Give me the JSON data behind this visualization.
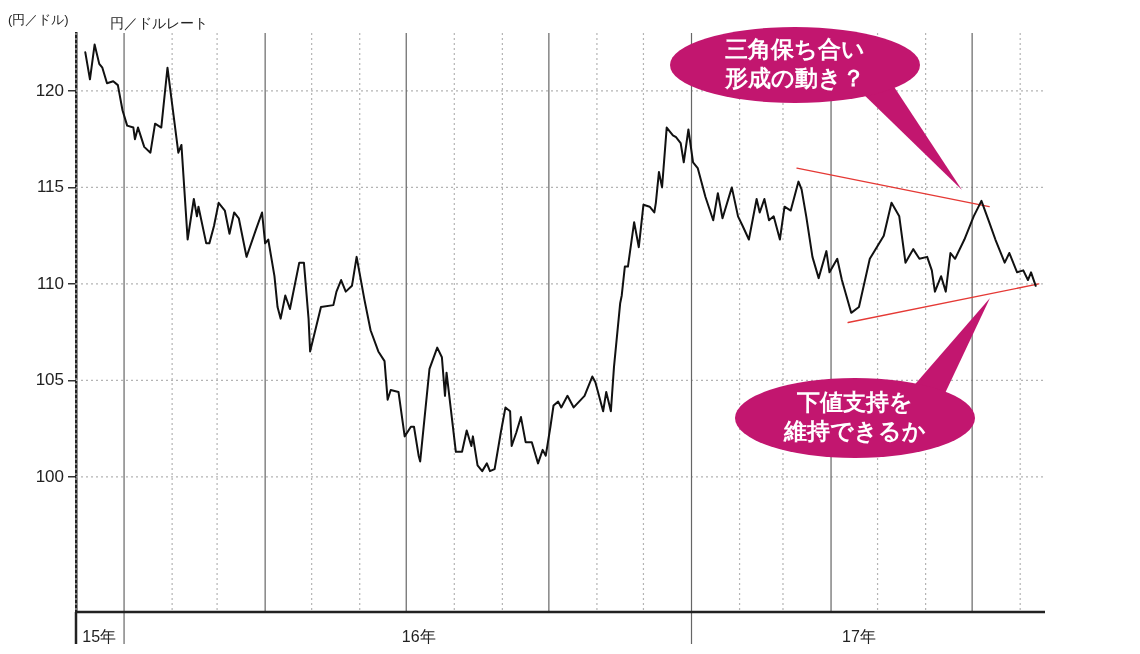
{
  "chart_data": {
    "type": "line",
    "title": "円／ドルレート",
    "ylabel": "(円／ドル)",
    "xlim": [
      "2015-12-01",
      "2017-08-17"
    ],
    "ylim": [
      93,
      123
    ],
    "yticks": [
      100,
      105,
      110,
      115,
      120
    ],
    "xticks": [
      {
        "value": "2015-12-01",
        "label": null
      },
      {
        "value": "2016-01-01",
        "label": null
      },
      {
        "value": "2016-02-01",
        "label": null
      },
      {
        "value": "2016-03-01",
        "label": null
      },
      {
        "value": "2016-04-01",
        "label": null
      },
      {
        "value": "2016-05-01",
        "label": null
      },
      {
        "value": "2016-06-01",
        "label": null
      },
      {
        "value": "2016-07-01",
        "label": null
      },
      {
        "value": "2016-08-01",
        "label": null
      },
      {
        "value": "2016-09-01",
        "label": null
      },
      {
        "value": "2016-10-01",
        "label": null
      },
      {
        "value": "2016-11-01",
        "label": null
      },
      {
        "value": "2016-12-01",
        "label": null
      },
      {
        "value": "2017-01-01",
        "label": null
      },
      {
        "value": "2017-02-01",
        "label": null
      },
      {
        "value": "2017-03-01",
        "label": null
      },
      {
        "value": "2017-04-01",
        "label": null
      },
      {
        "value": "2017-05-01",
        "label": null
      },
      {
        "value": "2017-06-01",
        "label": null
      },
      {
        "value": "2017-07-01",
        "label": null
      },
      {
        "value": "2017-08-01",
        "label": null
      },
      {
        "value": "2015-12-16",
        "label": "15年"
      },
      {
        "value": "2016-07-09",
        "label": "16年"
      },
      {
        "value": "2017-04-19",
        "label": "17年"
      }
    ],
    "grid": true,
    "series": [
      {
        "color": "#111111",
        "x": [
          "2015-12-07",
          "2015-12-10",
          "2015-12-13",
          "2015-12-16",
          "2015-12-18",
          "2015-12-21",
          "2015-12-25",
          "2015-12-28",
          "2015-12-31",
          "2016-01-03",
          "2016-01-07",
          "2016-01-08",
          "2016-01-10",
          "2016-01-14",
          "2016-01-18",
          "2016-01-21",
          "2016-01-25",
          "2016-01-29",
          "2016-02-05",
          "2016-02-07",
          "2016-02-11",
          "2016-02-15",
          "2016-02-17",
          "2016-02-18",
          "2016-02-23",
          "2016-02-25",
          "2016-02-28",
          "2016-03-02",
          "2016-03-06",
          "2016-03-09",
          "2016-03-12",
          "2016-03-15",
          "2016-03-20",
          "2016-03-26",
          "2016-03-30",
          "2016-04-01",
          "2016-04-03",
          "2016-04-07",
          "2016-04-09",
          "2016-04-11",
          "2016-04-14",
          "2016-04-17",
          "2016-04-18",
          "2016-04-23",
          "2016-04-26",
          "2016-04-29",
          "2016-04-30",
          "2016-05-07",
          "2016-05-15",
          "2016-05-17",
          "2016-05-20",
          "2016-05-23",
          "2016-05-27",
          "2016-05-30",
          "2016-06-04",
          "2016-06-08",
          "2016-06-13",
          "2016-06-17",
          "2016-06-19",
          "2016-06-21",
          "2016-06-26",
          "2016-06-30",
          "2016-07-04",
          "2016-07-06",
          "2016-07-09",
          "2016-07-10",
          "2016-07-16",
          "2016-07-21",
          "2016-07-24",
          "2016-07-26",
          "2016-07-27",
          "2016-08-02",
          "2016-08-06",
          "2016-08-09",
          "2016-08-12",
          "2016-08-13",
          "2016-08-16",
          "2016-08-19",
          "2016-08-22",
          "2016-08-24",
          "2016-08-27",
          "2016-08-31",
          "2016-09-03",
          "2016-09-06",
          "2016-09-07",
          "2016-09-10",
          "2016-09-13",
          "2016-09-16",
          "2016-09-20",
          "2016-09-24",
          "2016-09-27",
          "2016-09-29",
          "2016-10-02",
          "2016-10-04",
          "2016-10-07",
          "2016-10-09",
          "2016-10-13",
          "2016-10-17",
          "2016-10-24",
          "2016-10-29",
          "2016-10-31",
          "2016-11-05",
          "2016-11-07",
          "2016-11-10",
          "2016-11-12",
          "2016-11-16",
          "2016-11-17",
          "2016-11-19",
          "2016-11-21",
          "2016-11-25",
          "2016-11-28",
          "2016-12-01",
          "2016-12-05",
          "2016-12-08",
          "2016-12-09",
          "2016-12-11",
          "2016-12-13",
          "2016-12-16",
          "2016-12-20",
          "2016-12-22",
          "2016-12-25",
          "2016-12-27",
          "2016-12-30",
          "2017-01-02",
          "2017-01-05",
          "2017-01-10",
          "2017-01-15",
          "2017-01-18",
          "2017-01-21",
          "2017-01-27",
          "2017-01-31",
          "2017-02-03",
          "2017-02-07",
          "2017-02-12",
          "2017-02-14",
          "2017-02-17",
          "2017-02-20",
          "2017-02-23",
          "2017-02-27",
          "2017-03-02",
          "2017-03-06",
          "2017-03-11",
          "2017-03-13",
          "2017-03-16",
          "2017-03-20",
          "2017-03-24",
          "2017-03-29",
          "2017-03-31",
          "2017-04-05",
          "2017-04-08",
          "2017-04-14",
          "2017-04-19",
          "2017-04-26",
          "2017-05-05",
          "2017-05-10",
          "2017-05-15",
          "2017-05-19",
          "2017-05-24",
          "2017-05-28",
          "2017-06-02",
          "2017-06-05",
          "2017-06-07",
          "2017-06-11",
          "2017-06-14",
          "2017-06-17",
          "2017-06-20",
          "2017-06-26",
          "2017-07-02",
          "2017-07-07",
          "2017-07-12",
          "2017-07-16",
          "2017-07-22",
          "2017-07-25",
          "2017-07-30",
          "2017-08-03",
          "2017-08-06",
          "2017-08-08",
          "2017-08-11"
        ],
        "values": [
          122.0,
          120.6,
          122.4,
          121.4,
          121.2,
          120.4,
          120.5,
          120.3,
          119.0,
          118.2,
          118.1,
          117.5,
          118.1,
          117.1,
          116.8,
          118.3,
          118.1,
          121.2,
          116.8,
          117.2,
          112.3,
          114.4,
          113.5,
          114.0,
          112.1,
          112.1,
          113.0,
          114.2,
          113.8,
          112.6,
          113.7,
          113.4,
          111.4,
          112.8,
          113.7,
          112.1,
          112.3,
          110.4,
          108.8,
          108.2,
          109.4,
          108.7,
          109.1,
          111.1,
          111.1,
          108.2,
          106.5,
          108.8,
          108.9,
          109.6,
          110.2,
          109.6,
          109.9,
          111.4,
          109.2,
          107.6,
          106.5,
          106.0,
          104.0,
          104.5,
          104.4,
          102.1,
          102.6,
          102.6,
          101.1,
          100.8,
          105.6,
          106.7,
          106.2,
          104.2,
          105.4,
          101.3,
          101.3,
          102.4,
          101.6,
          102.1,
          100.6,
          100.3,
          100.7,
          100.3,
          100.4,
          102.3,
          103.6,
          103.4,
          101.6,
          102.3,
          103.1,
          101.8,
          101.8,
          100.7,
          101.4,
          101.1,
          102.6,
          103.7,
          103.9,
          103.6,
          104.2,
          103.6,
          104.2,
          105.2,
          104.9,
          103.4,
          104.4,
          103.4,
          105.7,
          109.0,
          109.4,
          110.9,
          110.9,
          113.2,
          111.9,
          114.1,
          114.0,
          113.7,
          114.2,
          115.8,
          115.0,
          118.1,
          117.7,
          117.6,
          117.3,
          116.3,
          118.0,
          116.3,
          116.0,
          114.5,
          113.3,
          114.7,
          113.4,
          115.0,
          113.5,
          113.0,
          112.3,
          114.4,
          113.7,
          114.4,
          113.3,
          113.5,
          112.3,
          114.0,
          113.8,
          115.3,
          114.9,
          113.5,
          111.4,
          110.3,
          111.7,
          110.6,
          111.3,
          110.2,
          108.5,
          108.8,
          111.3,
          112.5,
          114.2,
          113.5,
          111.1,
          111.8,
          111.3,
          111.4,
          110.7,
          109.6,
          110.4,
          109.6,
          111.6,
          111.3,
          112.3,
          113.5,
          114.3,
          113.2,
          112.3,
          111.1,
          111.6,
          110.6,
          110.7,
          110.2,
          110.6,
          109.9
        ]
      },
      {
        "type": "line",
        "color": "#e53935",
        "x": [
          "2017-03-10",
          "2017-07-12"
        ],
        "values": [
          116.0,
          114.0
        ]
      },
      {
        "type": "line",
        "color": "#e53935",
        "x": [
          "2017-04-12",
          "2017-08-13"
        ],
        "values": [
          108.0,
          110.0
        ]
      }
    ],
    "annotations": [
      "三角保ち合い形成の動き？",
      "下値支持を維持できるか"
    ]
  }
}
